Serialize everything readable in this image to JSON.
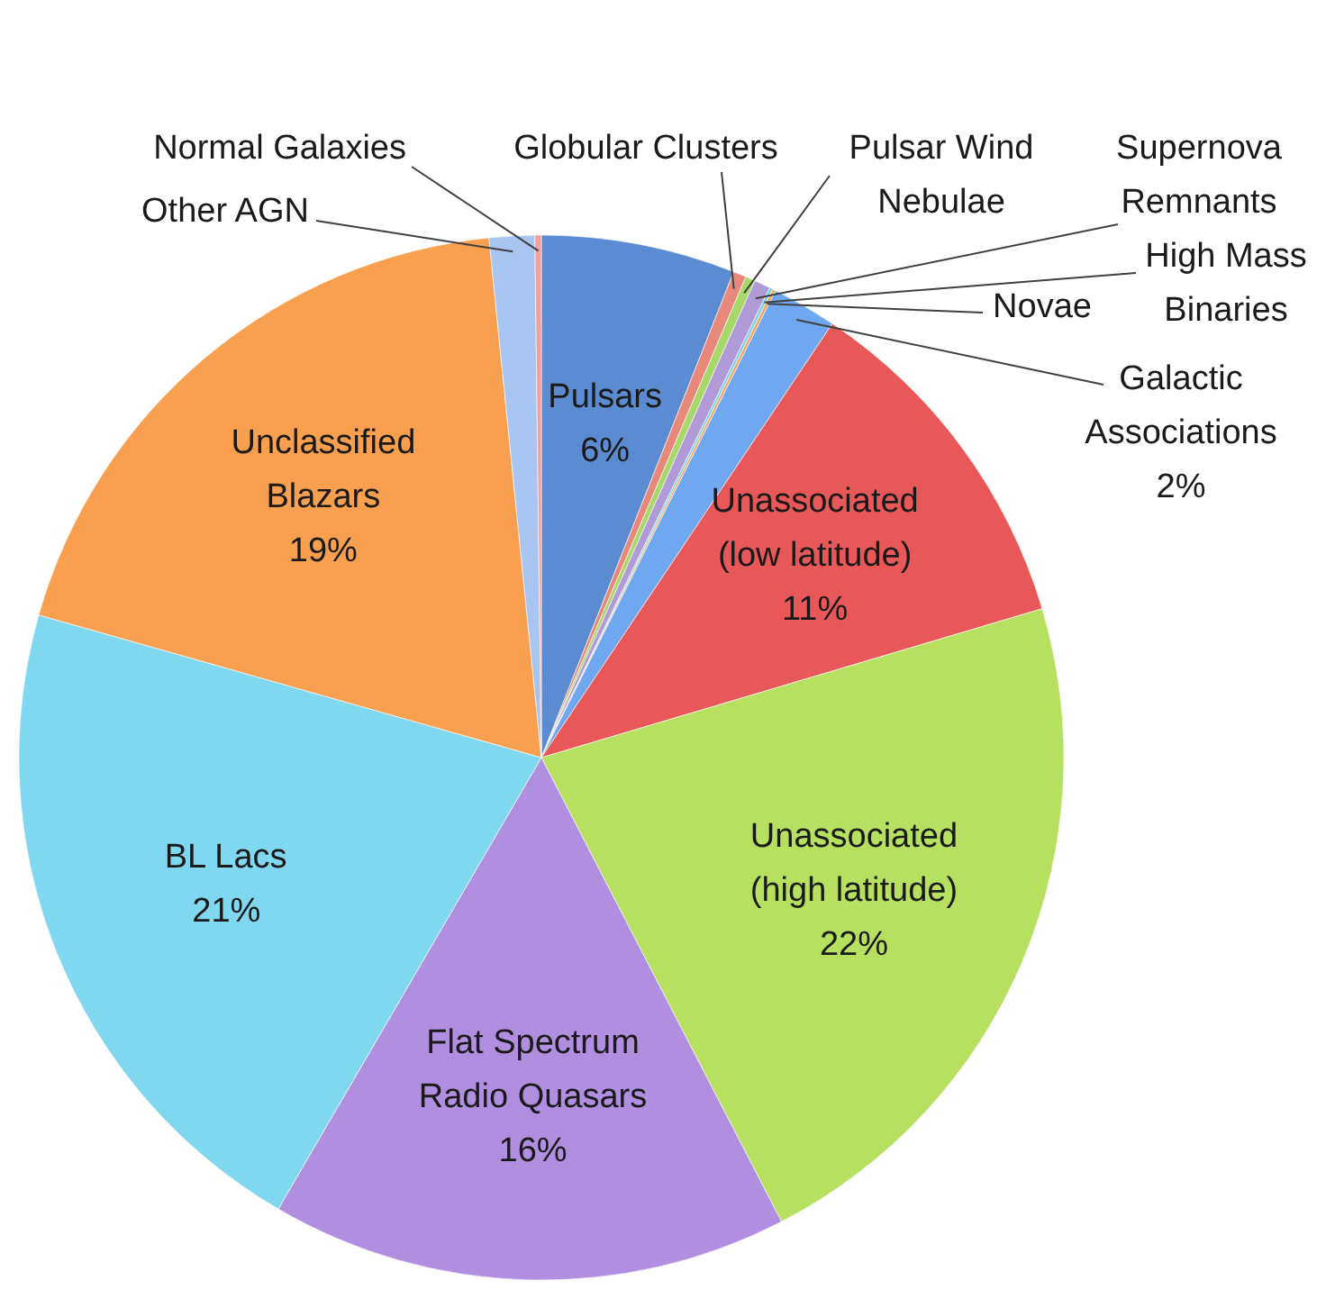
{
  "chart_data": {
    "type": "pie",
    "categories": [
      "Pulsars",
      "Globular Clusters",
      "Pulsar Wind Nebulae",
      "Supernova Remnants",
      "High Mass Binaries",
      "Novae",
      "Galactic Associations",
      "Unassociated (low latitude)",
      "Unassociated (high latitude)",
      "Flat Spectrum Radio Quasars",
      "BL Lacs",
      "Unclassified Blazars",
      "Other AGN",
      "Normal Galaxies"
    ],
    "values": [
      6,
      0.4,
      0.3,
      0.5,
      0.1,
      0.1,
      2,
      11,
      22,
      16,
      21,
      19,
      1.4,
      0.2
    ],
    "value_labels": [
      "6%",
      null,
      null,
      null,
      null,
      null,
      "2%",
      "11%",
      "22%",
      "16%",
      "21%",
      "19%",
      null,
      null
    ],
    "colors": [
      "#5b8bd0",
      "#e8887a",
      "#a8d86a",
      "#b09ad8",
      "#7fd0e8",
      "#f5a55a",
      "#6fa8f0",
      "#e85858",
      "#b8e060",
      "#b08ee0",
      "#80d8f0",
      "#f8a050",
      "#a8c4f0",
      "#f0a0a0"
    ]
  }
}
